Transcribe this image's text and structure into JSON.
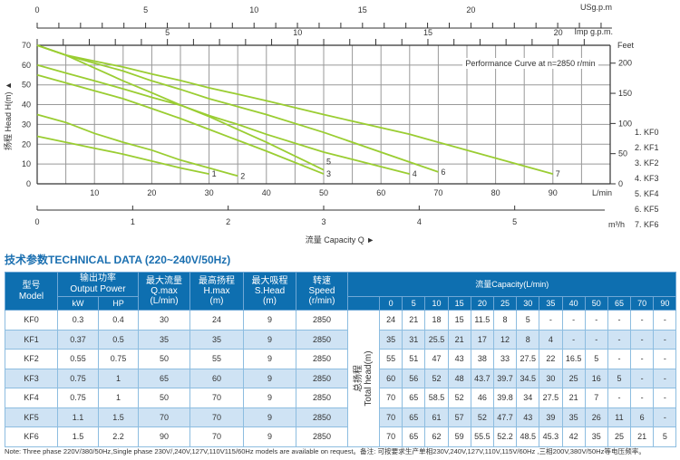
{
  "chart_data": {
    "type": "line",
    "title": "Performance Curve at n=2850 r/min",
    "xlabel": "流量 Capacity Q ►",
    "ylabel": "扬程 Head H(m) ▲",
    "xlim": [
      0,
      100
    ],
    "ylim": [
      0,
      70
    ],
    "grid": true,
    "x_unit": "L/min",
    "x_ticks": [
      10,
      20,
      30,
      40,
      50,
      60,
      70,
      80,
      90
    ],
    "y_ticks": [
      0,
      10,
      20,
      30,
      40,
      50,
      60,
      70
    ],
    "top_axis_usgpm": {
      "label": "USg.p.m",
      "ticks": [
        0,
        5,
        10,
        15,
        20
      ]
    },
    "top_axis_impgpm": {
      "label": "Imp g.p.m.",
      "ticks": [
        5,
        10,
        15,
        20
      ]
    },
    "right_axis_feet": {
      "label": "Feet",
      "ticks": [
        0,
        50,
        100,
        150,
        200
      ]
    },
    "bottom_axis_m3h": {
      "label": "m³/h",
      "ticks": [
        0,
        1,
        2,
        3,
        4,
        5
      ]
    },
    "legend": [
      "1. KF0",
      "2. KF1",
      "3. KF2",
      "4. KF3",
      "5. KF4",
      "6. KF5",
      "7. KF6"
    ],
    "legend_position": "right",
    "series": [
      {
        "name": "1",
        "x": [
          0,
          5,
          10,
          15,
          20,
          25,
          30
        ],
        "y": [
          24,
          21,
          18,
          15,
          11.5,
          8,
          5
        ]
      },
      {
        "name": "2",
        "x": [
          0,
          5,
          10,
          15,
          20,
          25,
          30,
          35
        ],
        "y": [
          35,
          31,
          25.5,
          21,
          17,
          12,
          8,
          4
        ]
      },
      {
        "name": "3",
        "x": [
          0,
          5,
          10,
          15,
          20,
          25,
          30,
          35,
          40,
          50
        ],
        "y": [
          55,
          51,
          47,
          43,
          38,
          33,
          27.5,
          22,
          16.5,
          5
        ]
      },
      {
        "name": "4",
        "x": [
          0,
          5,
          10,
          15,
          20,
          25,
          30,
          35,
          40,
          50,
          65
        ],
        "y": [
          60,
          56,
          52,
          48,
          43.7,
          39.7,
          34.5,
          30,
          25,
          16,
          5
        ]
      },
      {
        "name": "5",
        "x": [
          0,
          5,
          10,
          15,
          20,
          25,
          30,
          35,
          40,
          50
        ],
        "y": [
          70,
          65,
          58.5,
          52,
          46,
          39.8,
          34,
          27.5,
          21,
          7
        ]
      },
      {
        "name": "6",
        "x": [
          0,
          5,
          10,
          15,
          20,
          25,
          30,
          35,
          40,
          50,
          65,
          70
        ],
        "y": [
          70,
          65,
          61,
          57,
          52,
          47.7,
          43,
          39,
          35,
          26,
          11,
          6
        ]
      },
      {
        "name": "7",
        "x": [
          0,
          5,
          10,
          15,
          20,
          25,
          30,
          35,
          40,
          50,
          65,
          70,
          90
        ],
        "y": [
          70,
          65,
          62,
          59,
          55.5,
          52.2,
          48.5,
          45.3,
          42,
          35,
          25,
          21,
          5
        ]
      }
    ],
    "colors": {
      "curve": "#9acd32",
      "grid": "#999999"
    }
  },
  "table": {
    "title": "技术参数TECHNICAL DATA (220~240V/50Hz)",
    "headers": {
      "model": "型号\nModel",
      "output_power": "输出功率\nOutput Power",
      "kw": "kW",
      "hp": "HP",
      "qmax": "最大流量\nQ.max\n(L/min)",
      "hmax": "最高扬程\nH.max\n(m)",
      "shead": "最大吸程\nS.Head\n(m)",
      "speed": "转速\nSpeed\n(r/min)",
      "capacity": "流量Capacity(L/min)",
      "total_head": "总扬程\nTotal head(m)",
      "capacity_cols": [
        "0",
        "5",
        "10",
        "15",
        "20",
        "25",
        "30",
        "35",
        "40",
        "50",
        "65",
        "70",
        "90"
      ]
    },
    "rows": [
      {
        "model": "KF0",
        "kw": "0.3",
        "hp": "0.4",
        "qmax": "30",
        "hmax": "24",
        "shead": "9",
        "speed": "2850",
        "heads": [
          "24",
          "21",
          "18",
          "15",
          "11.5",
          "8",
          "5",
          "-",
          "-",
          "-",
          "-",
          "-",
          "-"
        ]
      },
      {
        "model": "KF1",
        "kw": "0.37",
        "hp": "0.5",
        "qmax": "35",
        "hmax": "35",
        "shead": "9",
        "speed": "2850",
        "heads": [
          "35",
          "31",
          "25.5",
          "21",
          "17",
          "12",
          "8",
          "4",
          "-",
          "-",
          "-",
          "-",
          "-"
        ]
      },
      {
        "model": "KF2",
        "kw": "0.55",
        "hp": "0.75",
        "qmax": "50",
        "hmax": "55",
        "shead": "9",
        "speed": "2850",
        "heads": [
          "55",
          "51",
          "47",
          "43",
          "38",
          "33",
          "27.5",
          "22",
          "16.5",
          "5",
          "-",
          "-",
          "-"
        ]
      },
      {
        "model": "KF3",
        "kw": "0.75",
        "hp": "1",
        "qmax": "65",
        "hmax": "60",
        "shead": "9",
        "speed": "2850",
        "heads": [
          "60",
          "56",
          "52",
          "48",
          "43.7",
          "39.7",
          "34.5",
          "30",
          "25",
          "16",
          "5",
          "-",
          "-"
        ]
      },
      {
        "model": "KF4",
        "kw": "0.75",
        "hp": "1",
        "qmax": "50",
        "hmax": "70",
        "shead": "9",
        "speed": "2850",
        "heads": [
          "70",
          "65",
          "58.5",
          "52",
          "46",
          "39.8",
          "34",
          "27.5",
          "21",
          "7",
          "-",
          "-",
          "-"
        ]
      },
      {
        "model": "KF5",
        "kw": "1.1",
        "hp": "1.5",
        "qmax": "70",
        "hmax": "70",
        "shead": "9",
        "speed": "2850",
        "heads": [
          "70",
          "65",
          "61",
          "57",
          "52",
          "47.7",
          "43",
          "39",
          "35",
          "26",
          "11",
          "6",
          "-"
        ]
      },
      {
        "model": "KF6",
        "kw": "1.5",
        "hp": "2.2",
        "qmax": "90",
        "hmax": "70",
        "shead": "9",
        "speed": "2850",
        "heads": [
          "70",
          "65",
          "62",
          "59",
          "55.5",
          "52.2",
          "48.5",
          "45.3",
          "42",
          "35",
          "25",
          "21",
          "5"
        ]
      }
    ]
  },
  "note": "Note: Three phase 220V/380/50Hz,Single phase 230V/,240V,127V,110V115/60Hz models are available on request。备注: 可按要求生产单相230V,240V,127V,110V,115V/60Hz ,三相200V,380V/50Hz等电压频率。"
}
